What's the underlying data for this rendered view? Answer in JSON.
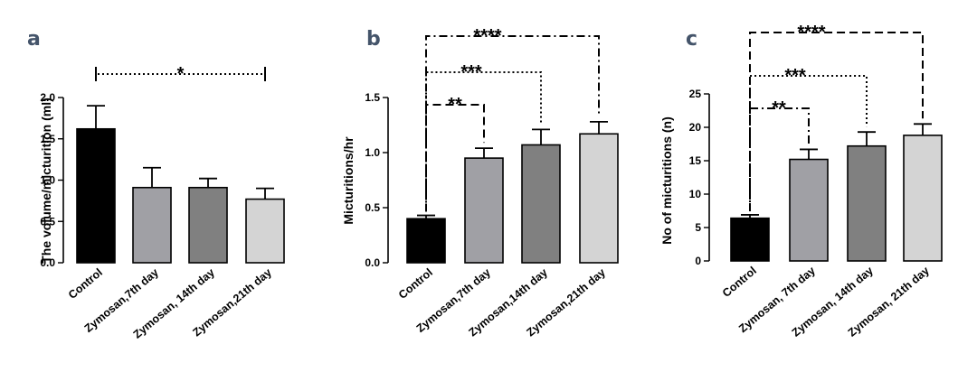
{
  "chart_data": [
    {
      "type": "bar",
      "panel_label": "a",
      "ylabel": "The volume/micturition (ml)",
      "categories": [
        "Control",
        "Zymosan,7th day",
        "Zymosan, 14th day",
        "Zymosan,21th day"
      ],
      "values": [
        1.62,
        0.91,
        0.91,
        0.77
      ],
      "errors": [
        0.28,
        0.24,
        0.11,
        0.13
      ],
      "colors": [
        "#000000",
        "#a0a0a5",
        "#808080",
        "#d4d4d4"
      ],
      "ylim": [
        0,
        2.0
      ],
      "yticks": [
        0.0,
        0.5,
        1.0,
        1.5,
        2.0
      ],
      "ytick_labels": [
        "0.0",
        "0.5",
        "1.0",
        "1.5",
        "2.0"
      ],
      "comparisons": [
        {
          "from": 0,
          "to": 3,
          "label": "*",
          "style": "dotted"
        }
      ]
    },
    {
      "type": "bar",
      "panel_label": "b",
      "ylabel": "Micturitions/hr",
      "categories": [
        "Control",
        "Zymosan,7th day",
        "Zymosan,14th day",
        "Zymosan,21th day"
      ],
      "values": [
        0.4,
        0.95,
        1.07,
        1.17
      ],
      "errors": [
        0.03,
        0.09,
        0.14,
        0.11
      ],
      "colors": [
        "#000000",
        "#a0a0a5",
        "#808080",
        "#d4d4d4"
      ],
      "ylim": [
        0,
        1.5
      ],
      "yticks": [
        0.0,
        0.5,
        1.0,
        1.5
      ],
      "ytick_labels": [
        "0.0",
        "0.5",
        "1.0",
        "1.5"
      ],
      "comparisons": [
        {
          "from": 0,
          "to": 1,
          "label": "**",
          "style": "dashed"
        },
        {
          "from": 0,
          "to": 2,
          "label": "***",
          "style": "dotted"
        },
        {
          "from": 0,
          "to": 3,
          "label": "****",
          "style": "dashdot"
        }
      ]
    },
    {
      "type": "bar",
      "panel_label": "c",
      "ylabel": "No of micturitions (n)",
      "categories": [
        "Control",
        "Zymosan, 7th day",
        "Zymosan, 14th day",
        "Zymosan, 21th day"
      ],
      "values": [
        6.4,
        15.2,
        17.2,
        18.8
      ],
      "errors": [
        0.5,
        1.5,
        2.1,
        1.7
      ],
      "colors": [
        "#000000",
        "#a0a0a5",
        "#808080",
        "#d4d4d4"
      ],
      "ylim": [
        0,
        25
      ],
      "yticks": [
        0,
        5,
        10,
        15,
        20,
        25
      ],
      "ytick_labels": [
        "0",
        "5",
        "10",
        "15",
        "20",
        "25"
      ],
      "comparisons": [
        {
          "from": 0,
          "to": 1,
          "label": "**",
          "style": "dashdot"
        },
        {
          "from": 0,
          "to": 2,
          "label": "***",
          "style": "dotted"
        },
        {
          "from": 0,
          "to": 3,
          "label": "****",
          "style": "dashed"
        }
      ]
    }
  ]
}
